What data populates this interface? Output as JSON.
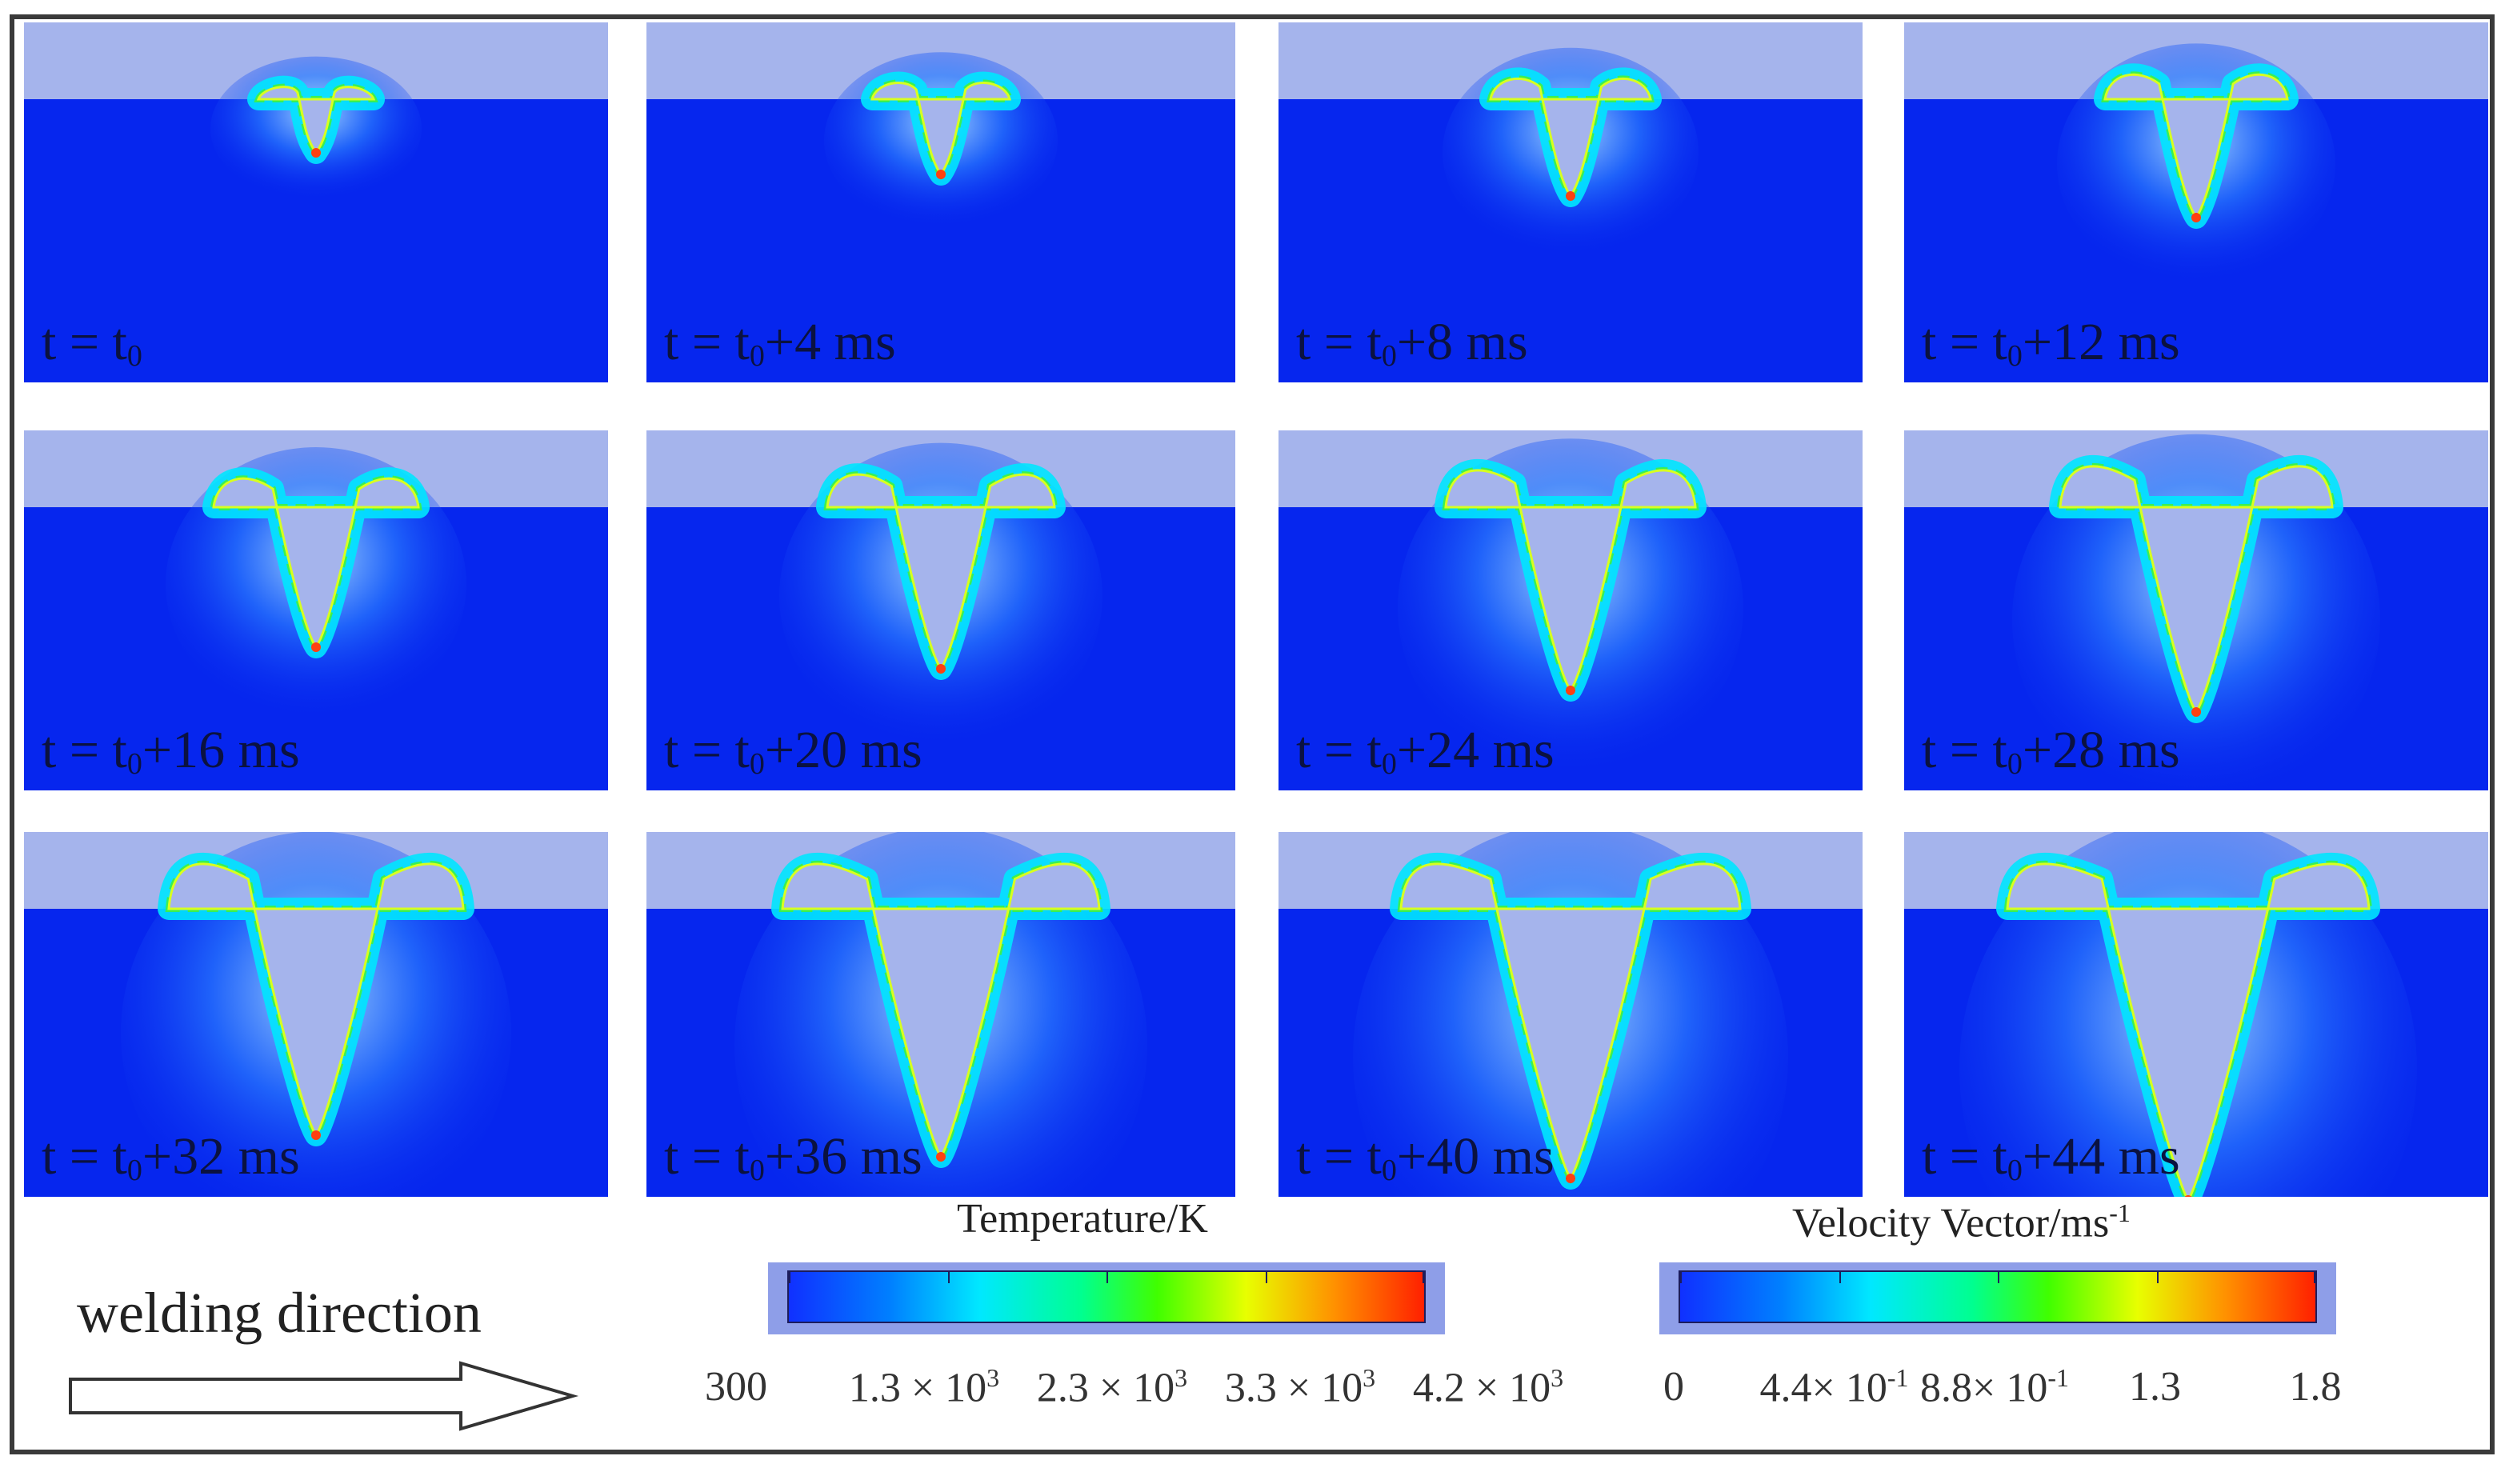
{
  "figure": {
    "panels": [
      {
        "t_symbol": "t = t",
        "t_sub": "0",
        "t_suffix": "",
        "stage": 1
      },
      {
        "t_symbol": "t = t",
        "t_sub": "0",
        "t_suffix": "+4 ms",
        "stage": 2
      },
      {
        "t_symbol": "t = t",
        "t_sub": "0",
        "t_suffix": "+8 ms",
        "stage": 3
      },
      {
        "t_symbol": "t = t",
        "t_sub": "0",
        "t_suffix": "+12 ms",
        "stage": 4
      },
      {
        "t_symbol": "t = t",
        "t_sub": "0",
        "t_suffix": "+16 ms",
        "stage": 5
      },
      {
        "t_symbol": "t = t",
        "t_sub": "0",
        "t_suffix": "+20 ms",
        "stage": 6
      },
      {
        "t_symbol": "t = t",
        "t_sub": "0",
        "t_suffix": "+24 ms",
        "stage": 7
      },
      {
        "t_symbol": "t = t",
        "t_sub": "0",
        "t_suffix": "+28 ms",
        "stage": 8
      },
      {
        "t_symbol": "t = t",
        "t_sub": "0",
        "t_suffix": "+32 ms",
        "stage": 9
      },
      {
        "t_symbol": "t = t",
        "t_sub": "0",
        "t_suffix": "+36 ms",
        "stage": 10
      },
      {
        "t_symbol": "t = t",
        "t_sub": "0",
        "t_suffix": "+40 ms",
        "stage": 11
      },
      {
        "t_symbol": "t = t",
        "t_sub": "0",
        "t_suffix": "+44 ms",
        "stage": 12
      }
    ],
    "temperature_legend": {
      "title": "Temperature/K",
      "ticks": [
        {
          "base": "300",
          "exp": ""
        },
        {
          "base": "1.3 × 10",
          "exp": "3"
        },
        {
          "base": "2.3 × 10",
          "exp": "3"
        },
        {
          "base": "3.3 × 10",
          "exp": "3"
        },
        {
          "base": "4.2 × 10",
          "exp": "3"
        }
      ]
    },
    "velocity_legend": {
      "title": "Velocity Vector/ms",
      "title_exp": "-1",
      "ticks": [
        {
          "base": "0",
          "exp": ""
        },
        {
          "base": "4.4× 10",
          "exp": "-1"
        },
        {
          "base": "8.8× 10",
          "exp": "-1"
        },
        {
          "base": "1.3",
          "exp": ""
        },
        {
          "base": "1.8",
          "exp": ""
        }
      ]
    },
    "direction_label": "welding direction",
    "colors": {
      "workpiece": "#0626ee",
      "gas": "#a5b4ec",
      "melt_edge": "#00e6ff",
      "vector_green": "#3cf04a",
      "vector_yellow": "#d8ff20",
      "vector_red": "#ff4010"
    }
  }
}
